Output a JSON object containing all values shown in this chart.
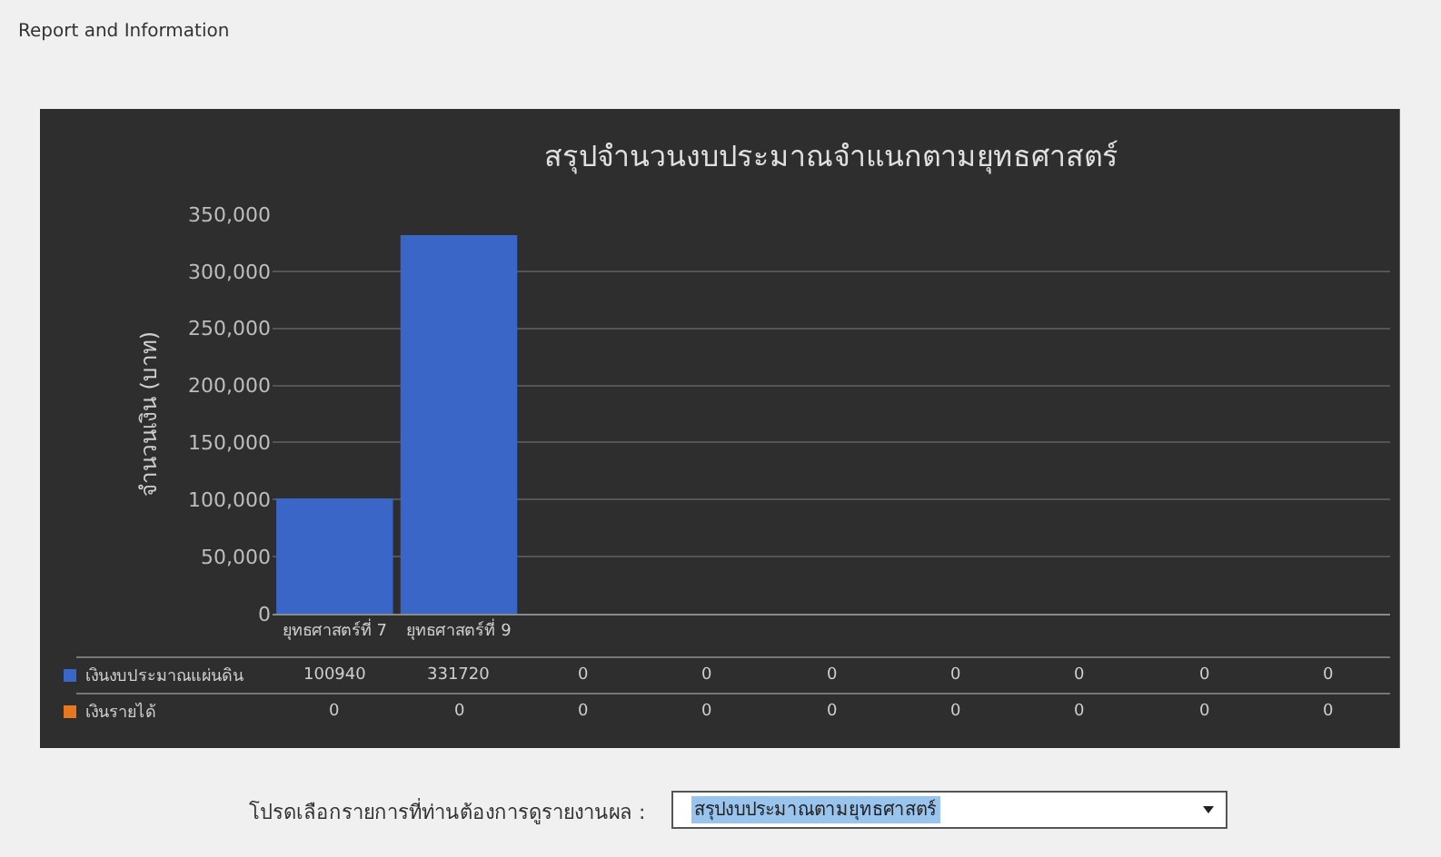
{
  "chart_data": {
    "type": "bar",
    "title": "สรุปจำนวนงบประมาณจำแนกตามยุทธศาสตร์",
    "ylabel": "จำนวนเงิน (บาท)",
    "categories": [
      "ยุทธศาสตร์ที่ 7",
      "ยุทธศาสตร์ที่ 9",
      null,
      null,
      null,
      null,
      null,
      null,
      null
    ],
    "series": [
      {
        "name": "เงินงบประมาณแผ่นดิน",
        "color": "#3a66c8",
        "values": [
          100940,
          331720,
          0,
          0,
          0,
          0,
          0,
          0,
          0
        ]
      },
      {
        "name": "เงินรายได้",
        "color": "#e87722",
        "values": [
          0,
          0,
          0,
          0,
          0,
          0,
          0,
          0,
          0
        ]
      }
    ],
    "ylim": [
      0,
      350000
    ],
    "yticks": [
      {
        "value": 0,
        "label": "0"
      },
      {
        "value": 50000,
        "label": "50,000"
      },
      {
        "value": 100000,
        "label": "100,000"
      },
      {
        "value": 150000,
        "label": "150,000"
      },
      {
        "value": 200000,
        "label": "200,000"
      },
      {
        "value": 250000,
        "label": "250,000"
      },
      {
        "value": 300000,
        "label": "300,000"
      },
      {
        "value": 350000,
        "label": "350,000"
      }
    ],
    "grid": "y",
    "legend": "bottom",
    "data_labels": true,
    "annotations": [
      "Report and Information",
      "โปรดเลือกรายการที่ท่านต้องการดูรายงานผล :",
      "สรุปงบประมาณตามยุทธศาสตร์"
    ]
  }
}
